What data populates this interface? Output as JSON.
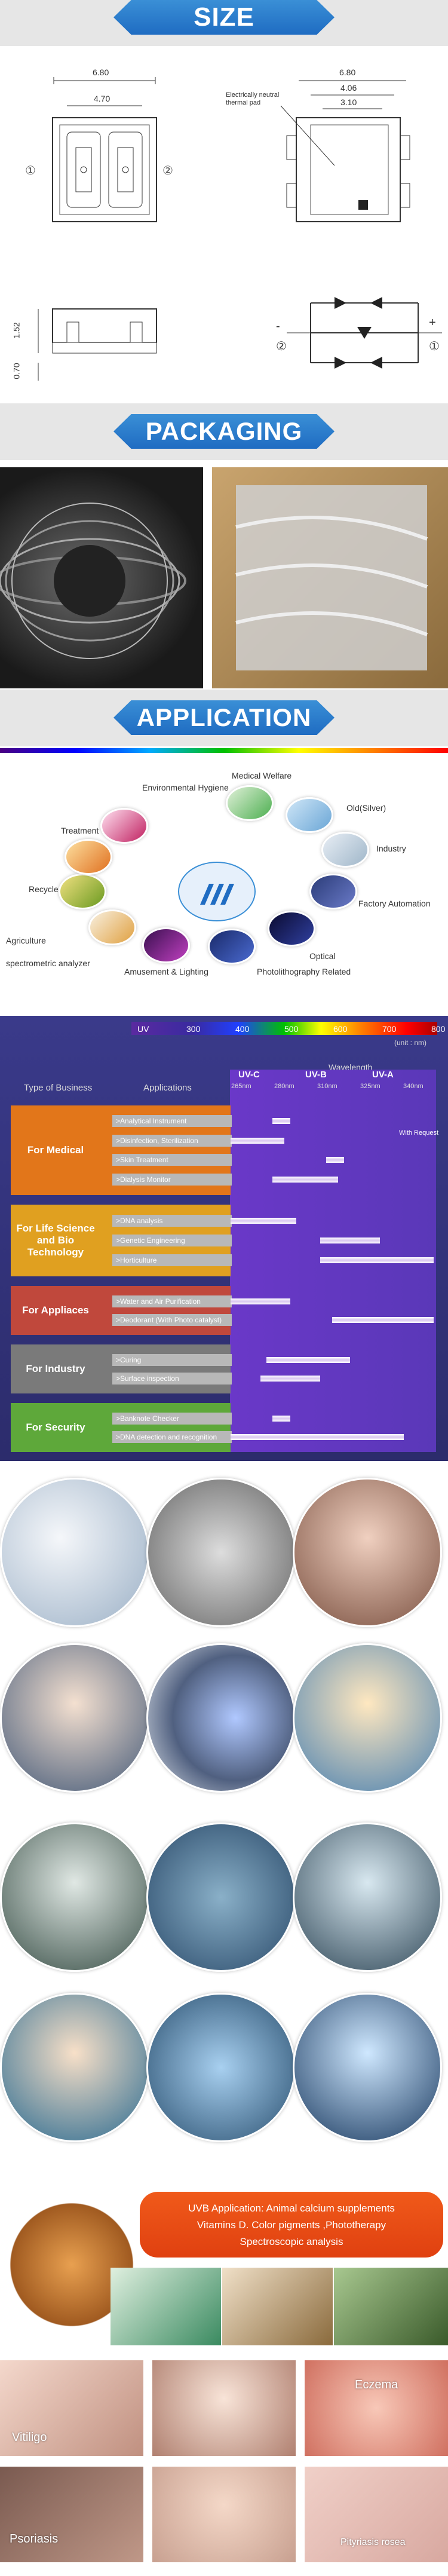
{
  "size": {
    "title": "SIZE",
    "top_width": "6.80",
    "inner_width": "4.70",
    "right_width": "6.80",
    "right_inner1": "4.06",
    "right_inner2": "3.10",
    "pad_note": "Electrically neutral thermal pad",
    "mark1": "①",
    "mark2": "②",
    "height": "1.52",
    "lead": "0.70",
    "pin_minus": "-",
    "pin_plus": "+",
    "pin2": "②",
    "pin1": "①"
  },
  "packaging": {
    "title": "PACKAGING"
  },
  "application": {
    "title": "APPLICATION",
    "labels": {
      "environmental": "Environmental Hygiene",
      "medical": "Medical Welfare",
      "old": "Old(Silver)",
      "industry": "Industry",
      "factory": "Factory Automation",
      "optical": "Optical",
      "photolith": "Photolithography Related",
      "amusement": "Amusement & Lighting",
      "spectro": "spectrometric analyzer",
      "agriculture": "Agriculture",
      "recycle": "Recycle",
      "treatment": "Treatment"
    }
  },
  "chart": {
    "scale": [
      "UV",
      "300",
      "400",
      "500",
      "600",
      "700",
      "800"
    ],
    "unit": "(unit : nm)",
    "wavelength": "Wavelength",
    "col_business": "Type of Business",
    "col_apps": "Applications",
    "bands": [
      "UV-C",
      "UV-B",
      "UV-A"
    ],
    "band_nm": [
      "265nm",
      "280nm",
      "310nm",
      "325nm",
      "340nm"
    ],
    "with_request": "With Request",
    "groups": [
      {
        "name": "For Medical",
        "color": "#e2761a",
        "apps": [
          ">Analytical Instrument",
          ">Disinfection, Sterilization",
          ">Skin Treatment",
          ">Dialysis Monitor"
        ]
      },
      {
        "name": "For Life Science and Bio Technology",
        "color": "#e0a020",
        "apps": [
          ">DNA analysis",
          ">Genetic Engineering",
          ">Horticulture"
        ]
      },
      {
        "name": "For Appliaces",
        "color": "#c0483c",
        "apps": [
          ">Water and Air Purification",
          ">Deodorant (With Photo catalyst)"
        ]
      },
      {
        "name": "For Industry",
        "color": "#7a7a7a",
        "apps": [
          ">Curing",
          ">Surface inspection"
        ]
      },
      {
        "name": "For Security",
        "color": "#5ea83a",
        "apps": [
          ">Banknote Checker",
          ">DNA detection and recognition"
        ]
      }
    ]
  },
  "uvb": {
    "line1": "UVB Application:  Animal calcium supplements",
    "line2": "Vitamins D. Color pigments ,Phototherapy",
    "line3": "Spectroscopic analysis"
  },
  "skin": {
    "vitiligo": "Vitiligo",
    "eczema": "Eczema",
    "psoriasis": "Psoriasis",
    "pityriasis": "Pityriasis rosea"
  }
}
